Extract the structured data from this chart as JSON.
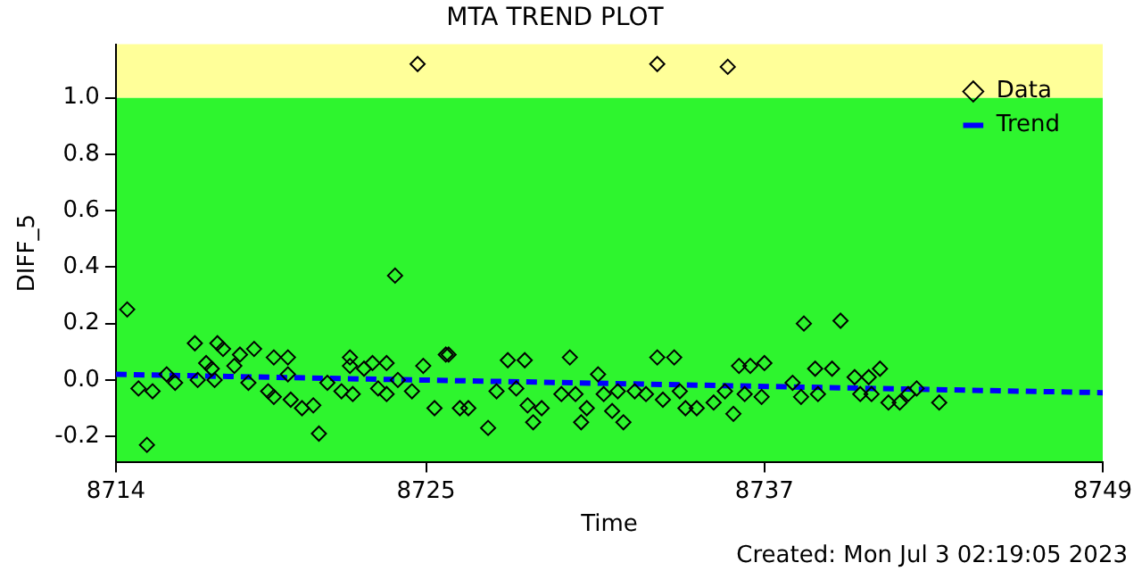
{
  "chart_data": {
    "type": "scatter",
    "title": "MTA TREND PLOT",
    "xlabel": "Time",
    "ylabel": "DIFF_5",
    "xlim": [
      8714,
      8749
    ],
    "xticks": [
      8714,
      8725,
      8737,
      8749
    ],
    "ylim": [
      -0.29,
      1.19
    ],
    "yticks": [
      -0.2,
      {
        "value": 0,
        "label": "0.0"
      },
      0.2,
      0.4,
      0.6,
      0.8,
      {
        "value": 1,
        "label": "1.0"
      }
    ],
    "grid": false,
    "legend": "top right",
    "marker": "diamond",
    "bands": [
      {
        "axis": "y",
        "from": 1.0,
        "to": 1.19,
        "color": "#ffff99"
      },
      {
        "axis": "y",
        "from": -0.29,
        "to": 1.0,
        "color": "#2ef52e"
      }
    ],
    "series": [
      {
        "name": "Data",
        "color": "#000000",
        "x": [
          8714.4,
          8714.8,
          8715.3,
          8715.1,
          8716.1,
          8715.8,
          8716.8,
          8717.6,
          8717.8,
          8717.2,
          8717.4,
          8716.9,
          8717.5,
          8718.2,
          8718.4,
          8718.9,
          8718.7,
          8719.6,
          8720.1,
          8720.1,
          8719.4,
          8719.6,
          8720.2,
          8720.6,
          8721.0,
          8721.2,
          8721.5,
          8722.0,
          8722.4,
          8722.3,
          8722.3,
          8722.8,
          8723.1,
          8723.3,
          8723.6,
          8723.6,
          8724.0,
          8724.5,
          8724.9,
          8725.3,
          8725.7,
          8723.9,
          8724.7,
          8733.2,
          8735.7,
          8725.8,
          8726.2,
          8726.5,
          8727.2,
          8727.5,
          8727.9,
          8728.5,
          8728.2,
          8728.6,
          8729.1,
          8728.8,
          8729.8,
          8730.3,
          8730.1,
          8730.7,
          8730.5,
          8731.1,
          8731.3,
          8731.6,
          8732.0,
          8731.8,
          8732.4,
          8732.8,
          8733.2,
          8733.8,
          8733.4,
          8734.0,
          8734.2,
          8734.6,
          8735.2,
          8735.6,
          8735.9,
          8736.1,
          8736.5,
          8737.0,
          8736.3,
          8736.9,
          8738.4,
          8739.7,
          8738.8,
          8739.4,
          8738.0,
          8738.3,
          8738.9,
          8740.2,
          8740.7,
          8741.1,
          8740.4,
          8740.8,
          8741.4,
          8741.8,
          8742.4,
          8742.1,
          8743.2
        ],
        "values": [
          0.25,
          -0.03,
          -0.04,
          -0.23,
          -0.01,
          0.02,
          0.13,
          0.13,
          0.11,
          0.06,
          0.04,
          0.0,
          0.0,
          0.05,
          0.09,
          0.11,
          -0.01,
          0.08,
          0.08,
          0.02,
          -0.04,
          -0.06,
          -0.07,
          -0.1,
          -0.09,
          -0.19,
          -0.01,
          -0.04,
          -0.05,
          0.08,
          0.05,
          0.04,
          0.06,
          -0.03,
          -0.05,
          0.06,
          0.0,
          -0.04,
          0.05,
          -0.1,
          0.09,
          0.37,
          1.12,
          1.12,
          1.11,
          0.09,
          -0.1,
          -0.1,
          -0.17,
          -0.04,
          0.07,
          0.07,
          -0.03,
          -0.09,
          -0.1,
          -0.15,
          -0.05,
          -0.05,
          0.08,
          -0.1,
          -0.15,
          0.02,
          -0.05,
          -0.11,
          -0.15,
          -0.04,
          -0.04,
          -0.05,
          0.08,
          0.08,
          -0.07,
          -0.04,
          -0.1,
          -0.1,
          -0.08,
          -0.04,
          -0.12,
          0.05,
          0.05,
          0.06,
          -0.05,
          -0.06,
          0.2,
          0.21,
          0.04,
          0.04,
          -0.01,
          -0.06,
          -0.05,
          0.01,
          0.01,
          0.04,
          -0.05,
          -0.05,
          -0.08,
          -0.08,
          -0.03,
          -0.05,
          -0.08
        ]
      },
      {
        "name": "Trend",
        "type": "line",
        "color": "#0000ff",
        "marker": "none",
        "line_style": "dashed",
        "x": [
          8714,
          8749
        ],
        "values": [
          0.02,
          -0.045
        ]
      }
    ],
    "annotations": [
      "Created: Mon Jul  3 02:19:05 2023"
    ]
  }
}
